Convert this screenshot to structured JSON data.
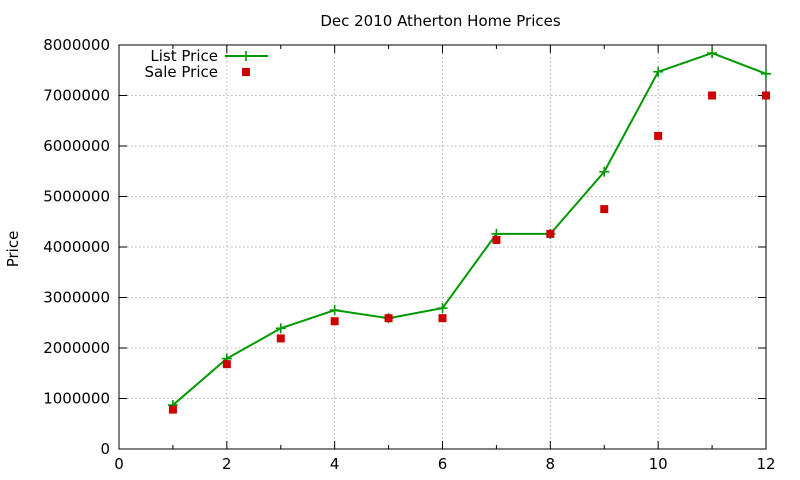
{
  "chart_data": {
    "type": "line",
    "title": "Dec 2010 Atherton Home Prices",
    "xlabel": "",
    "ylabel": "Price",
    "xlim": [
      0,
      12
    ],
    "ylim": [
      0,
      8000000
    ],
    "x_ticks": [
      0,
      2,
      4,
      6,
      8,
      10,
      12
    ],
    "y_ticks": [
      0,
      1000000,
      2000000,
      3000000,
      4000000,
      5000000,
      6000000,
      7000000,
      8000000
    ],
    "grid": true,
    "legend_position": "top-left",
    "series": [
      {
        "name": "List Price",
        "style": "line with plus markers",
        "color": "#009900",
        "x": [
          1,
          2,
          3,
          4,
          5,
          6,
          7,
          8,
          9,
          10,
          11,
          12
        ],
        "values": [
          870000,
          1790000,
          2390000,
          2750000,
          2590000,
          2790000,
          4260000,
          4260000,
          5490000,
          7470000,
          7840000,
          7430000
        ]
      },
      {
        "name": "Sale Price",
        "style": "square markers",
        "color": "#cc0000",
        "x": [
          1,
          2,
          3,
          4,
          5,
          6,
          7,
          8,
          9,
          10,
          11,
          12
        ],
        "values": [
          780000,
          1680000,
          2190000,
          2530000,
          2590000,
          2590000,
          4140000,
          4260000,
          4750000,
          6200000,
          7000000,
          7000000
        ]
      }
    ]
  }
}
